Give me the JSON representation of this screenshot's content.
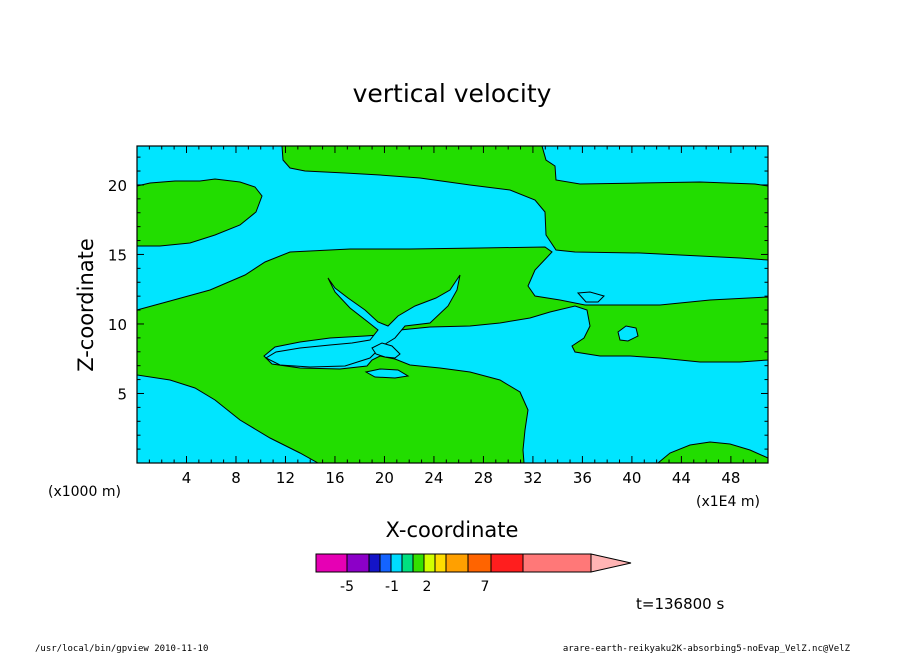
{
  "chart_data": {
    "type": "heatmap",
    "title": "vertical velocity",
    "xlabel": "X-coordinate",
    "ylabel": "Z-coordinate",
    "x_ticks": [
      4,
      8,
      12,
      16,
      20,
      24,
      28,
      32,
      36,
      40,
      44,
      48
    ],
    "x_tick_labels": [
      "4",
      "8",
      "12",
      "16",
      "20",
      "24",
      "28",
      "32",
      "36",
      "40",
      "44",
      "48"
    ],
    "xlim": [
      0,
      51
    ],
    "x_scale_note": "(x1E4 m)",
    "y_ticks": [
      5,
      10,
      15,
      20
    ],
    "y_tick_labels": [
      "5",
      "10",
      "15",
      "20"
    ],
    "ylim": [
      0,
      22.8
    ],
    "y_scale_note": "(x1000 m)",
    "fill_colors": {
      "negative": "#00e5ff",
      "positive": "#22dd00"
    },
    "colorbar": {
      "colors": [
        "#e600b4",
        "#8c00c8",
        "#1414c8",
        "#1464ff",
        "#00dcff",
        "#00e080",
        "#34e000",
        "#d2ff00",
        "#ffdc00",
        "#ffa000",
        "#ff6400",
        "#ff1e1e",
        "#ff7878",
        "#ffb4b4"
      ],
      "tick_labels": [
        "-5",
        "-1",
        "2",
        "7"
      ]
    },
    "time_label": "t=136800 s"
  },
  "footer": {
    "left": "/usr/local/bin/gpview  2010-11-10",
    "right": "arare-earth-reikyaku2K-absorbing5-noEvap_VelZ.nc@VelZ"
  }
}
